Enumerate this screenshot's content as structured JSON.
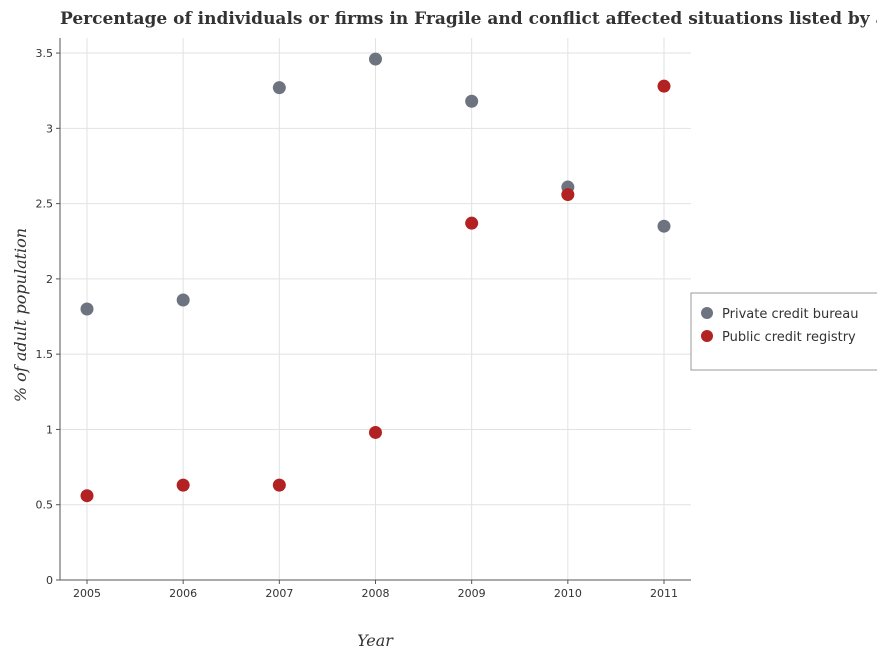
{
  "chart_data": {
    "type": "scatter",
    "title": "Percentage of individuals or firms in Fragile and conflict affected situations listed by a private or",
    "xlabel": "Year",
    "ylabel": "% of adult population",
    "x": [
      "2005",
      "2006",
      "2007",
      "2008",
      "2009",
      "2010",
      "2011"
    ],
    "ylim": [
      0,
      3.6
    ],
    "yticks": [
      "0",
      "0.5",
      "1",
      "1.5",
      "2",
      "2.5",
      "3",
      "3.5"
    ],
    "grid": true,
    "legend_position": "right",
    "series": [
      {
        "name": "Private credit bureau",
        "color": "#6d7480",
        "values": [
          1.8,
          1.86,
          3.27,
          3.46,
          3.18,
          2.61,
          2.35
        ]
      },
      {
        "name": "Public credit registry",
        "color": "#b22222",
        "values": [
          0.56,
          0.63,
          0.63,
          0.98,
          2.37,
          2.56,
          3.28
        ]
      }
    ]
  }
}
